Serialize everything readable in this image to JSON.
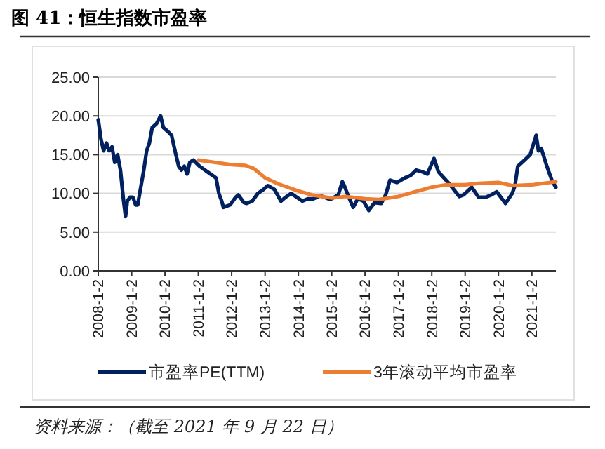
{
  "chart_data": {
    "type": "line",
    "title": "图 41：恒生指数市盈率",
    "annotations": [
      "资料来源：（截至 2021 年 9 月 22 日）"
    ],
    "xlim": [
      "2008-01-02",
      "2021-09-22"
    ],
    "xticks": [
      {
        "value": "2008-01-02",
        "label": "2008-1-2"
      },
      {
        "value": "2009-01-02",
        "label": "2009-1-2"
      },
      {
        "value": "2010-01-02",
        "label": "2010-1-2"
      },
      {
        "value": "2011-01-02",
        "label": "2011-1-2"
      },
      {
        "value": "2012-01-02",
        "label": "2012-1-2"
      },
      {
        "value": "2013-01-02",
        "label": "2013-1-2"
      },
      {
        "value": "2014-01-02",
        "label": "2014-1-2"
      },
      {
        "value": "2015-01-02",
        "label": "2015-1-2"
      },
      {
        "value": "2016-01-02",
        "label": "2016-1-2"
      },
      {
        "value": "2017-01-02",
        "label": "2017-1-2"
      },
      {
        "value": "2018-01-02",
        "label": "2018-1-2"
      },
      {
        "value": "2019-01-02",
        "label": "2019-1-2"
      },
      {
        "value": "2020-01-02",
        "label": "2020-1-2"
      },
      {
        "value": "2021-01-02",
        "label": "2021-1-2"
      }
    ],
    "ylim": [
      0,
      25
    ],
    "yticks": [
      {
        "value": 0,
        "label": "0.00"
      },
      {
        "value": 5,
        "label": "5.00"
      },
      {
        "value": 10,
        "label": "10.00"
      },
      {
        "value": 15,
        "label": "15.00"
      },
      {
        "value": 20,
        "label": "20.00"
      },
      {
        "value": 25,
        "label": "25.00"
      }
    ],
    "grid": "y",
    "legend": "bottom",
    "marker": "none",
    "line_style": "solid",
    "series": [
      {
        "name": "市盈率PE(TTM)",
        "color": "#002060",
        "x": [
          "2008-01-02",
          "2008-02-01",
          "2008-03-01",
          "2008-04-01",
          "2008-05-01",
          "2008-06-01",
          "2008-07-01",
          "2008-08-01",
          "2008-09-01",
          "2008-10-01",
          "2008-10-27",
          "2008-11-15",
          "2008-12-15",
          "2009-01-15",
          "2009-02-15",
          "2009-03-09",
          "2009-04-15",
          "2009-05-15",
          "2009-06-15",
          "2009-07-15",
          "2009-08-15",
          "2009-10-01",
          "2009-11-15",
          "2009-12-15",
          "2010-02-01",
          "2010-03-15",
          "2010-05-01",
          "2010-06-01",
          "2010-07-01",
          "2010-08-01",
          "2010-09-01",
          "2010-10-01",
          "2010-11-08",
          "2011-01-15",
          "2011-03-15",
          "2011-05-15",
          "2011-07-15",
          "2011-08-15",
          "2011-09-15",
          "2011-10-04",
          "2011-12-15",
          "2012-02-15",
          "2012-03-15",
          "2012-05-15",
          "2012-06-15",
          "2012-08-15",
          "2012-10-15",
          "2012-12-15",
          "2013-02-01",
          "2013-04-15",
          "2013-06-25",
          "2013-08-15",
          "2013-10-15",
          "2013-12-15",
          "2014-02-15",
          "2014-04-15",
          "2014-06-15",
          "2014-09-01",
          "2014-12-15",
          "2015-03-15",
          "2015-04-28",
          "2015-05-20",
          "2015-07-08",
          "2015-08-25",
          "2015-10-15",
          "2015-12-15",
          "2016-02-12",
          "2016-04-15",
          "2016-06-27",
          "2016-08-15",
          "2016-10-01",
          "2016-12-15",
          "2017-03-15",
          "2017-05-15",
          "2017-07-15",
          "2017-09-15",
          "2017-11-15",
          "2018-01-26",
          "2018-03-15",
          "2018-05-15",
          "2018-07-15",
          "2018-10-30",
          "2018-12-15",
          "2019-03-15",
          "2019-05-30",
          "2019-08-15",
          "2019-10-15",
          "2019-12-15",
          "2020-03-19",
          "2020-06-01",
          "2020-07-01",
          "2020-08-01",
          "2020-10-15",
          "2020-12-15",
          "2021-02-18",
          "2021-03-15",
          "2021-04-15",
          "2021-06-15",
          "2021-08-15",
          "2021-09-22"
        ],
        "values": [
          19.5,
          17,
          15.5,
          16.5,
          15.5,
          16,
          14,
          15,
          13,
          9.5,
          7,
          9,
          9.5,
          9.5,
          8.5,
          8.5,
          11,
          13,
          15.5,
          16.5,
          18.5,
          19,
          20,
          18.5,
          18,
          17.5,
          15,
          13.5,
          13,
          13.5,
          12.5,
          14,
          14.3,
          13.5,
          13,
          12.5,
          12,
          10,
          9,
          8.2,
          8.5,
          9.5,
          9.8,
          8.8,
          8.7,
          9,
          10,
          10.5,
          11,
          10.5,
          9,
          9.5,
          10,
          9.5,
          9,
          9.3,
          9.3,
          9.7,
          9.2,
          9.8,
          11.5,
          11,
          9.5,
          8.2,
          9.3,
          9,
          7.8,
          8.8,
          8.7,
          9.8,
          11.7,
          11.4,
          12,
          12.3,
          13,
          12.8,
          12.5,
          14.5,
          12.8,
          12,
          11.2,
          9.6,
          9.8,
          10.8,
          9.5,
          9.5,
          9.8,
          10.2,
          8.7,
          10,
          11,
          13.5,
          14.3,
          15,
          17.5,
          15.5,
          15.8,
          13.5,
          11.5,
          10.8
        ]
      },
      {
        "name": "3年滚动平均市盈率",
        "color": "#ed7d31",
        "x": [
          "2011-01-02",
          "2012-01-02",
          "2012-06-01",
          "2012-09-01",
          "2013-01-02",
          "2013-06-01",
          "2014-01-02",
          "2014-06-01",
          "2015-01-02",
          "2015-06-01",
          "2016-01-02",
          "2016-06-01",
          "2017-01-02",
          "2017-06-01",
          "2018-01-02",
          "2018-06-01",
          "2019-01-02",
          "2019-06-01",
          "2020-01-02",
          "2020-06-01",
          "2021-01-02",
          "2021-09-22"
        ],
        "values": [
          14.3,
          13.7,
          13.6,
          13.2,
          12,
          11.2,
          10.3,
          9.8,
          9.4,
          9.6,
          9.3,
          9.2,
          9.6,
          10.1,
          10.8,
          11.1,
          11.1,
          11.3,
          11.4,
          11,
          11.1,
          11.5
        ]
      }
    ]
  }
}
